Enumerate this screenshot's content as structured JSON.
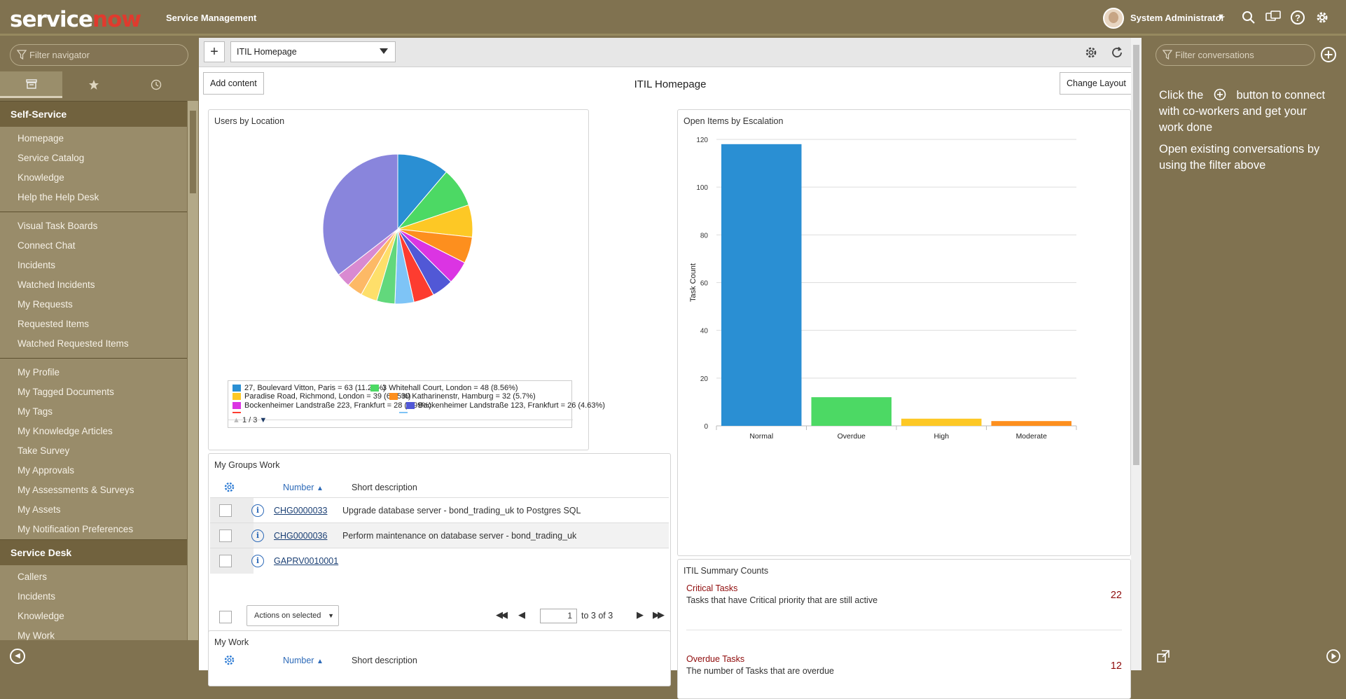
{
  "header": {
    "logo_service": "service",
    "logo_now": "now",
    "app_title": "Service Management",
    "user_name": "System Administrator",
    "icons": [
      "search-icon",
      "chat-icon",
      "help-icon",
      "settings-icon"
    ]
  },
  "navigator": {
    "filter_placeholder": "Filter navigator",
    "tabs": [
      "all-apps-icon",
      "favorites-star-icon",
      "history-clock-icon"
    ],
    "sections": [
      {
        "title": "Self-Service",
        "groups": [
          [
            "Homepage",
            "Service Catalog",
            "Knowledge",
            "Help the Help Desk"
          ],
          [
            "Visual Task Boards",
            "Connect Chat",
            "Incidents",
            "Watched Incidents",
            "My Requests",
            "Requested Items",
            "Watched Requested Items"
          ],
          [
            "My Profile",
            "My Tagged Documents",
            "My Tags",
            "My Knowledge Articles",
            "Take Survey",
            "My Approvals",
            "My Assessments & Surveys",
            "My Assets",
            "My Notification Preferences"
          ]
        ]
      },
      {
        "title": "Service Desk",
        "groups": [
          [
            "Callers",
            "Incidents",
            "Knowledge",
            "My Work"
          ]
        ]
      }
    ]
  },
  "toolbar": {
    "add_label": "+",
    "page_select_value": "ITIL Homepage"
  },
  "page": {
    "title": "ITIL Homepage",
    "add_content_label": "Add content",
    "change_layout_label": "Change Layout"
  },
  "users_by_location": {
    "title": "Users by Location",
    "legend": [
      {
        "label": "27, Boulevard Vitton, Paris = 63 (11.23%)",
        "color": "#2a8fd3"
      },
      {
        "label": "3 Whitehall Court, London = 48 (8.56%)",
        "color": "#4cd964"
      },
      {
        "label": "Paradise Road, Richmond, London = 39 (6.95%)",
        "color": "#fdc825"
      },
      {
        "label": "30 Katharinenstr, Hamburg = 32 (5.7%)",
        "color": "#fd8f1e"
      },
      {
        "label": "Bockenheimer Landstraße 223, Frankfurt = 28 (4.99%)",
        "color": "#db34e3"
      },
      {
        "label": "Bockenheimer Landstraße 123, Frankfurt = 26 (4.63%)",
        "color": "#5158d6"
      }
    ],
    "pager": "1 / 3"
  },
  "escalation": {
    "title": "Open Items by Escalation"
  },
  "chart_data": [
    {
      "type": "pie",
      "title": "Users by Location",
      "slices": [
        {
          "label": "27, Boulevard Vitton, Paris",
          "value": 63,
          "percent": 11.23,
          "color": "#2a8fd3"
        },
        {
          "label": "3 Whitehall Court, London",
          "value": 48,
          "percent": 8.56,
          "color": "#4cd964"
        },
        {
          "label": "Paradise Road, Richmond, London",
          "value": 39,
          "percent": 6.95,
          "color": "#fdc825"
        },
        {
          "label": "30 Katharinenstr, Hamburg",
          "value": 32,
          "percent": 5.7,
          "color": "#fd8f1e"
        },
        {
          "label": "Bockenheimer Landstraße 223, Frankfurt",
          "value": 28,
          "percent": 4.99,
          "color": "#db34e3"
        },
        {
          "label": "Bockenheimer Landstraße 123, Frankfurt",
          "value": 26,
          "percent": 4.63,
          "color": "#5158d6"
        },
        {
          "label": "",
          "value": 25,
          "color": "#fd3c30"
        },
        {
          "label": "",
          "value": 23,
          "color": "#7ec4f6"
        },
        {
          "label": "",
          "value": 22,
          "color": "#62d87c"
        },
        {
          "label": "",
          "value": 20,
          "color": "#fedf6a"
        },
        {
          "label": "",
          "value": 19,
          "color": "#fdb966"
        },
        {
          "label": "",
          "value": 17,
          "color": "#d98ad1"
        },
        {
          "label": "",
          "value": 199,
          "color": "#8985dc"
        }
      ]
    },
    {
      "type": "bar",
      "title": "Open Items by Escalation",
      "categories": [
        "Normal",
        "Overdue",
        "High",
        "Moderate"
      ],
      "values": [
        118,
        12,
        3,
        2
      ],
      "colors": [
        "#2a8fd3",
        "#4cd964",
        "#fdc825",
        "#fd8f1e"
      ],
      "ylabel": "Task Count",
      "ylim": [
        0,
        120
      ],
      "yticks": [
        0,
        20,
        40,
        60,
        80,
        100,
        120
      ],
      "grid": true
    }
  ],
  "groups_work": {
    "title": "My Groups Work",
    "columns": [
      "Number",
      "Short description"
    ],
    "rows": [
      {
        "number": "CHG0000033",
        "description": "Upgrade database server - bond_trading_uk to Postgres SQL"
      },
      {
        "number": "CHG0000036",
        "description": "Perform maintenance on database server - bond_trading_uk"
      },
      {
        "number": "GAPRV0010001",
        "description": ""
      }
    ],
    "actions_label": "Actions on selected rows...",
    "page_input": "1",
    "page_of": "to 3 of 3"
  },
  "my_work": {
    "title": "My Work",
    "columns": [
      "Number",
      "Short description"
    ]
  },
  "summary": {
    "title": "ITIL Summary Counts",
    "items": [
      {
        "title": "Critical Tasks",
        "subtitle": "Tasks that have Critical priority that are still active",
        "count": "22"
      },
      {
        "title": "Overdue Tasks",
        "subtitle": "The number of Tasks that are overdue",
        "count": "12"
      }
    ]
  },
  "conversations": {
    "filter_placeholder": "Filter conversations",
    "help_1_before": "Click the",
    "help_1_after": "button to connect with co-workers and get your work done",
    "help_2": "Open existing conversations by using the filter above"
  }
}
